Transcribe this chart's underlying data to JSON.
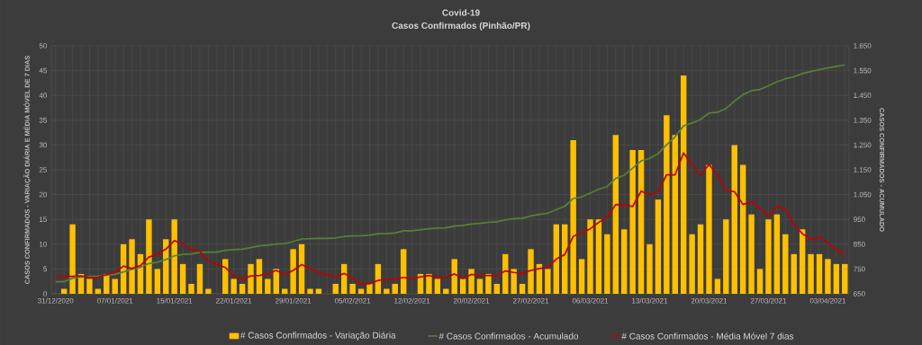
{
  "chart_data": {
    "type": "bar",
    "title": "Covid-19",
    "subtitle": "Casos Confirmados  (Pinhão/PR)",
    "ylabel": "CASOS CONFIRMADOS - VARIAÇÃO DIÁRIA E MÉDIA MÓVEL DE 7 DIAS",
    "y2label": "CASOS CONFIRMADOS - ACUMULADO",
    "categories": [
      "31/12/2020",
      null,
      null,
      null,
      null,
      null,
      null,
      "07/01/2021",
      null,
      null,
      null,
      null,
      null,
      null,
      "15/01/2021",
      null,
      null,
      null,
      null,
      null,
      null,
      "22/01/2021",
      null,
      null,
      null,
      null,
      null,
      null,
      "29/01/2021",
      null,
      null,
      null,
      null,
      null,
      null,
      "05/02/2021",
      null,
      null,
      null,
      null,
      null,
      null,
      "12/02/2021",
      null,
      null,
      null,
      null,
      null,
      null,
      "20/02/2021",
      null,
      null,
      null,
      null,
      null,
      null,
      "27/02/2021",
      null,
      null,
      null,
      null,
      null,
      null,
      "06/03/2021",
      null,
      null,
      null,
      null,
      null,
      null,
      "13/03/2021",
      null,
      null,
      null,
      null,
      null,
      null,
      "20/03/2021",
      null,
      null,
      null,
      null,
      null,
      null,
      "27/03/2021",
      null,
      null,
      null,
      null,
      null,
      null,
      "03/04/2021",
      null,
      null
    ],
    "series": [
      {
        "name": "# Casos Confirmados - Variação Diária",
        "color": "#ffc000",
        "values": [
          0,
          1,
          14,
          4,
          3,
          1,
          4,
          3,
          10,
          11,
          8,
          15,
          5,
          11,
          15,
          6,
          2,
          6,
          1,
          0,
          7,
          3,
          2,
          6,
          7,
          3,
          5,
          1,
          9,
          10,
          1,
          1,
          0,
          2,
          6,
          2,
          1,
          2,
          6,
          1,
          2,
          9,
          0,
          4,
          4,
          3,
          1,
          7,
          3,
          5,
          3,
          4,
          2,
          8,
          5,
          2,
          9,
          6,
          5,
          14,
          14,
          31,
          7,
          15,
          15,
          12,
          32,
          13,
          29,
          29,
          10,
          19,
          36,
          32,
          44,
          12,
          14,
          26,
          3,
          15,
          30,
          26,
          16,
          5,
          15,
          16,
          12,
          8,
          13,
          8,
          8,
          7,
          6,
          6
        ]
      },
      {
        "name": "# Casos Confirmados - Acumulado",
        "type": "line",
        "axis": "y2",
        "color": "#548235",
        "values": [
          698,
          699,
          713,
          717,
          720,
          721,
          725,
          728,
          738,
          749,
          757,
          772,
          777,
          788,
          803,
          809,
          811,
          817,
          818,
          818,
          825,
          828,
          830,
          836,
          843,
          846,
          851,
          852,
          861,
          871,
          872,
          873,
          873,
          875,
          881,
          883,
          884,
          886,
          892,
          893,
          895,
          904,
          904,
          908,
          912,
          915,
          916,
          923,
          926,
          931,
          934,
          938,
          940,
          948,
          953,
          955,
          964,
          970,
          975,
          989,
          1003,
          1034,
          1041,
          1056,
          1071,
          1083,
          1115,
          1128,
          1157,
          1186,
          1196,
          1215,
          1251,
          1283,
          1327,
          1339,
          1353,
          1379,
          1382,
          1397,
          1427,
          1453,
          1469,
          1474,
          1489,
          1505,
          1517,
          1525,
          1538,
          1546,
          1554,
          1561,
          1567,
          1573
        ]
      },
      {
        "name": "# Casos Confirmados - Média Móvel 7 dias",
        "type": "line",
        "color": "#c00000",
        "values": [
          3.4,
          3.5,
          3.5,
          3.6,
          3.3,
          3.3,
          3.9,
          4.3,
          5.6,
          5.1,
          5.7,
          7.4,
          8.0,
          9.0,
          10.7,
          10.1,
          8.9,
          8.6,
          6.6,
          5.9,
          5.3,
          3.6,
          3.0,
          3.6,
          3.7,
          4.0,
          4.7,
          3.9,
          4.7,
          5.9,
          5.1,
          4.3,
          3.9,
          3.4,
          4.1,
          3.1,
          1.9,
          2.0,
          2.7,
          2.9,
          2.9,
          3.3,
          3.0,
          3.4,
          3.7,
          3.3,
          3.3,
          4.0,
          3.1,
          3.9,
          3.7,
          3.7,
          3.6,
          4.6,
          4.3,
          4.1,
          4.7,
          5.1,
          5.3,
          7.0,
          7.9,
          11.6,
          12.3,
          13.1,
          14.4,
          15.4,
          18.0,
          17.9,
          17.6,
          20.7,
          20.0,
          20.6,
          24.0,
          24.0,
          28.4,
          26.0,
          23.9,
          26.1,
          23.9,
          20.9,
          20.6,
          18.0,
          18.6,
          17.3,
          15.7,
          17.6,
          17.1,
          14.0,
          12.1,
          11.0,
          11.4,
          10.3,
          8.9,
          8.0
        ]
      }
    ],
    "ylim": [
      0,
      50
    ],
    "yticks": [
      0,
      5,
      10,
      15,
      20,
      25,
      30,
      35,
      40,
      45,
      50
    ],
    "y2lim": [
      650,
      1650
    ],
    "y2ticks": [
      650,
      750,
      850,
      950,
      {
        "value": 1050,
        "label": "1.050"
      },
      {
        "value": 1150,
        "label": "1.150"
      },
      {
        "value": 1250,
        "label": "1.250"
      },
      {
        "value": 1350,
        "label": "1.350"
      },
      {
        "value": 1450,
        "label": "1.450"
      },
      {
        "value": 1550,
        "label": "1.550"
      },
      {
        "value": 1650,
        "label": "1.650"
      }
    ],
    "grid": true,
    "legend": "bottom"
  }
}
